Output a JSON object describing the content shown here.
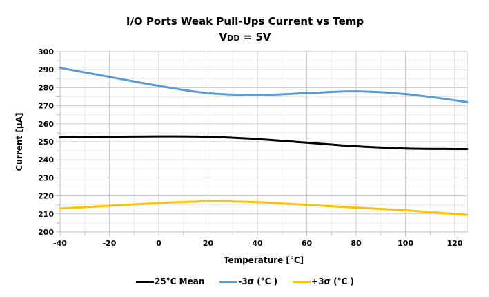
{
  "chart_data": {
    "type": "line",
    "title": "I/O Ports Weak Pull-Ups  Current vs Temp",
    "subtitle": {
      "main": "V",
      "sub": "DD",
      "rest": " = 5V"
    },
    "xlabel": "Temperature [°C]",
    "ylabel": "Current [µA]",
    "xlim": [
      -40,
      125
    ],
    "ylim": [
      200,
      300
    ],
    "xticks": [
      -40,
      -20,
      0,
      20,
      40,
      60,
      80,
      100,
      120
    ],
    "yticks": [
      200,
      210,
      220,
      230,
      240,
      250,
      260,
      270,
      280,
      290,
      300
    ],
    "x_minor_step": 10,
    "y_minor_step": 5,
    "grid": true,
    "legend_position": "bottom",
    "x": [
      -40,
      -20,
      0,
      20,
      40,
      60,
      80,
      100,
      120,
      125
    ],
    "series": [
      {
        "name": "25°C Mean",
        "color": "#000000",
        "values": [
          252.5,
          252.8,
          253.0,
          252.8,
          251.5,
          249.5,
          247.5,
          246.3,
          246.0,
          246.0
        ]
      },
      {
        "name": "-3σ (°C )",
        "color": "#5b9bd5",
        "values": [
          291.0,
          286.0,
          281.0,
          277.0,
          276.0,
          277.0,
          278.0,
          276.5,
          273.0,
          272.0
        ]
      },
      {
        "name": "+3σ (°C )",
        "color": "#ffc000",
        "values": [
          213.0,
          214.5,
          216.0,
          217.0,
          216.5,
          215.0,
          213.5,
          212.0,
          210.0,
          209.5
        ]
      }
    ]
  }
}
